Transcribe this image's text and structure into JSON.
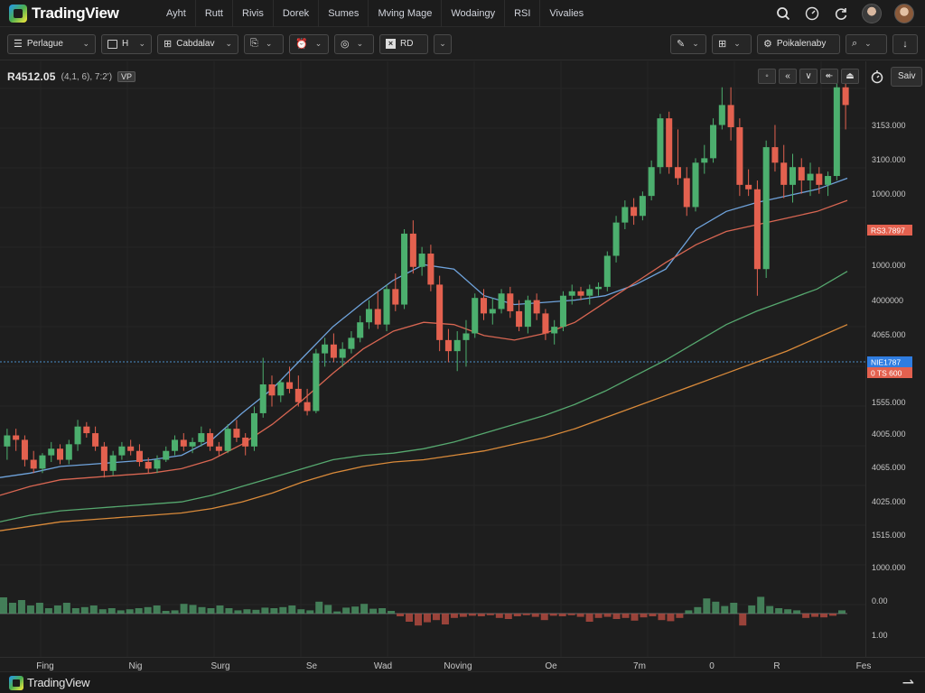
{
  "app": {
    "brand": "TradingView",
    "menu": [
      "Ayht",
      "Rutt",
      "Rivis",
      "Dorek",
      "Sumes",
      "Mving Mage",
      "Wodaingy",
      "RSI",
      "Vivalies"
    ],
    "footer_brand": "TradingView"
  },
  "header_icons": [
    "search-icon",
    "clock-icon",
    "refresh-icon",
    "avatar-user-1",
    "avatar-user-2"
  ],
  "toolbar": {
    "symbol_select": "Perlague",
    "interval_select": "H",
    "chart_type_select": "Cabdalav",
    "indicator_select": "RD",
    "right_select": "Poikalenaby"
  },
  "legend": {
    "symbol": "R4512.05",
    "params": "(4,1, 6), 7:2')",
    "badge": "VP"
  },
  "scale_controls": {
    "button_label": "Saiv"
  },
  "colors": {
    "background": "#1e1e1e",
    "up": "#4caf6e",
    "down": "#e3614f",
    "ma_blue": "#6fa3dc",
    "ma_red": "#d86652",
    "ma_green": "#56a86f",
    "ma_orange": "#d98a3a",
    "price_marker_red": "#e3614f",
    "price_marker_blue": "#2f7de1",
    "crosshair": "#4a8fc8"
  },
  "chart_data": {
    "type": "candlestick",
    "title": "",
    "price_axis_labels": [
      "3153.000",
      "3100.000",
      "1000.000",
      "1000.000",
      "4000000",
      "4065.000",
      "1515.000",
      "1555.000",
      "4005.000",
      "4065.000",
      "4025.000",
      "1515.000",
      "1000.000",
      "0.00",
      "1.00"
    ],
    "time_axis_labels": [
      "Fing",
      "Nig",
      "Surg",
      "Se",
      "Wad",
      "Noving",
      "Oe",
      "7m",
      "0",
      "R",
      "Fes"
    ],
    "price_markers": [
      {
        "label": "RS3.7897",
        "color": "#e3614f"
      },
      {
        "label": "NIE1787",
        "color": "#2f7de1"
      },
      {
        "label": "0 TS 600",
        "color": "#e3614f"
      }
    ],
    "ylim": [
      0,
      210
    ],
    "candles": [
      {
        "o": 42,
        "h": 50,
        "l": 36,
        "c": 47
      },
      {
        "o": 47,
        "h": 50,
        "l": 40,
        "c": 45
      },
      {
        "o": 45,
        "h": 47,
        "l": 33,
        "c": 36
      },
      {
        "o": 36,
        "h": 40,
        "l": 30,
        "c": 32
      },
      {
        "o": 32,
        "h": 39,
        "l": 30,
        "c": 38
      },
      {
        "o": 38,
        "h": 44,
        "l": 35,
        "c": 41
      },
      {
        "o": 41,
        "h": 43,
        "l": 34,
        "c": 36
      },
      {
        "o": 36,
        "h": 45,
        "l": 34,
        "c": 43
      },
      {
        "o": 43,
        "h": 54,
        "l": 40,
        "c": 51
      },
      {
        "o": 51,
        "h": 53,
        "l": 46,
        "c": 48
      },
      {
        "o": 48,
        "h": 51,
        "l": 40,
        "c": 42
      },
      {
        "o": 42,
        "h": 44,
        "l": 28,
        "c": 31
      },
      {
        "o": 31,
        "h": 40,
        "l": 29,
        "c": 38
      },
      {
        "o": 38,
        "h": 44,
        "l": 36,
        "c": 42
      },
      {
        "o": 42,
        "h": 45,
        "l": 38,
        "c": 40
      },
      {
        "o": 40,
        "h": 43,
        "l": 33,
        "c": 35
      },
      {
        "o": 35,
        "h": 37,
        "l": 30,
        "c": 32
      },
      {
        "o": 32,
        "h": 38,
        "l": 30,
        "c": 36
      },
      {
        "o": 36,
        "h": 42,
        "l": 35,
        "c": 40
      },
      {
        "o": 40,
        "h": 47,
        "l": 38,
        "c": 45
      },
      {
        "o": 45,
        "h": 48,
        "l": 40,
        "c": 42
      },
      {
        "o": 42,
        "h": 46,
        "l": 39,
        "c": 44
      },
      {
        "o": 44,
        "h": 51,
        "l": 42,
        "c": 48
      },
      {
        "o": 48,
        "h": 50,
        "l": 40,
        "c": 42
      },
      {
        "o": 42,
        "h": 44,
        "l": 38,
        "c": 40
      },
      {
        "o": 40,
        "h": 52,
        "l": 39,
        "c": 50
      },
      {
        "o": 50,
        "h": 54,
        "l": 44,
        "c": 46
      },
      {
        "o": 46,
        "h": 48,
        "l": 38,
        "c": 42
      },
      {
        "o": 42,
        "h": 60,
        "l": 40,
        "c": 57
      },
      {
        "o": 57,
        "h": 82,
        "l": 55,
        "c": 70
      },
      {
        "o": 70,
        "h": 74,
        "l": 60,
        "c": 65
      },
      {
        "o": 65,
        "h": 72,
        "l": 62,
        "c": 71
      },
      {
        "o": 71,
        "h": 78,
        "l": 66,
        "c": 68
      },
      {
        "o": 68,
        "h": 74,
        "l": 60,
        "c": 62
      },
      {
        "o": 62,
        "h": 68,
        "l": 56,
        "c": 58
      },
      {
        "o": 58,
        "h": 86,
        "l": 57,
        "c": 84
      },
      {
        "o": 84,
        "h": 91,
        "l": 78,
        "c": 88
      },
      {
        "o": 88,
        "h": 93,
        "l": 80,
        "c": 82
      },
      {
        "o": 82,
        "h": 89,
        "l": 78,
        "c": 86
      },
      {
        "o": 86,
        "h": 94,
        "l": 84,
        "c": 91
      },
      {
        "o": 91,
        "h": 101,
        "l": 89,
        "c": 98
      },
      {
        "o": 98,
        "h": 108,
        "l": 95,
        "c": 104
      },
      {
        "o": 104,
        "h": 112,
        "l": 95,
        "c": 97
      },
      {
        "o": 97,
        "h": 115,
        "l": 94,
        "c": 113
      },
      {
        "o": 113,
        "h": 120,
        "l": 103,
        "c": 106
      },
      {
        "o": 106,
        "h": 140,
        "l": 104,
        "c": 138
      },
      {
        "o": 138,
        "h": 144,
        "l": 120,
        "c": 123
      },
      {
        "o": 123,
        "h": 132,
        "l": 119,
        "c": 129
      },
      {
        "o": 129,
        "h": 133,
        "l": 112,
        "c": 115
      },
      {
        "o": 115,
        "h": 119,
        "l": 85,
        "c": 90
      },
      {
        "o": 90,
        "h": 95,
        "l": 80,
        "c": 85
      },
      {
        "o": 85,
        "h": 94,
        "l": 76,
        "c": 90
      },
      {
        "o": 90,
        "h": 99,
        "l": 78,
        "c": 93
      },
      {
        "o": 93,
        "h": 111,
        "l": 91,
        "c": 109
      },
      {
        "o": 109,
        "h": 113,
        "l": 99,
        "c": 102
      },
      {
        "o": 102,
        "h": 109,
        "l": 97,
        "c": 104
      },
      {
        "o": 104,
        "h": 113,
        "l": 102,
        "c": 111
      },
      {
        "o": 111,
        "h": 114,
        "l": 100,
        "c": 103
      },
      {
        "o": 103,
        "h": 108,
        "l": 94,
        "c": 96
      },
      {
        "o": 96,
        "h": 110,
        "l": 93,
        "c": 108
      },
      {
        "o": 108,
        "h": 111,
        "l": 99,
        "c": 102
      },
      {
        "o": 102,
        "h": 104,
        "l": 90,
        "c": 93
      },
      {
        "o": 93,
        "h": 99,
        "l": 88,
        "c": 96
      },
      {
        "o": 96,
        "h": 112,
        "l": 94,
        "c": 110
      },
      {
        "o": 110,
        "h": 115,
        "l": 106,
        "c": 112
      },
      {
        "o": 112,
        "h": 114,
        "l": 108,
        "c": 110
      },
      {
        "o": 110,
        "h": 115,
        "l": 106,
        "c": 113
      },
      {
        "o": 113,
        "h": 116,
        "l": 110,
        "c": 114
      },
      {
        "o": 114,
        "h": 130,
        "l": 112,
        "c": 128
      },
      {
        "o": 128,
        "h": 146,
        "l": 125,
        "c": 143
      },
      {
        "o": 143,
        "h": 153,
        "l": 140,
        "c": 150
      },
      {
        "o": 150,
        "h": 154,
        "l": 142,
        "c": 146
      },
      {
        "o": 146,
        "h": 157,
        "l": 144,
        "c": 155
      },
      {
        "o": 155,
        "h": 171,
        "l": 153,
        "c": 168
      },
      {
        "o": 168,
        "h": 192,
        "l": 165,
        "c": 190
      },
      {
        "o": 190,
        "h": 193,
        "l": 165,
        "c": 168
      },
      {
        "o": 168,
        "h": 185,
        "l": 160,
        "c": 163
      },
      {
        "o": 163,
        "h": 168,
        "l": 146,
        "c": 150
      },
      {
        "o": 150,
        "h": 172,
        "l": 148,
        "c": 170
      },
      {
        "o": 170,
        "h": 178,
        "l": 165,
        "c": 172
      },
      {
        "o": 172,
        "h": 190,
        "l": 170,
        "c": 187
      },
      {
        "o": 187,
        "h": 204,
        "l": 185,
        "c": 196
      },
      {
        "o": 196,
        "h": 204,
        "l": 180,
        "c": 186
      },
      {
        "o": 186,
        "h": 190,
        "l": 155,
        "c": 160
      },
      {
        "o": 160,
        "h": 167,
        "l": 155,
        "c": 158
      },
      {
        "o": 158,
        "h": 162,
        "l": 110,
        "c": 122
      },
      {
        "o": 122,
        "h": 180,
        "l": 118,
        "c": 177
      },
      {
        "o": 177,
        "h": 187,
        "l": 166,
        "c": 170
      },
      {
        "o": 170,
        "h": 178,
        "l": 154,
        "c": 160
      },
      {
        "o": 160,
        "h": 174,
        "l": 152,
        "c": 168
      },
      {
        "o": 168,
        "h": 172,
        "l": 156,
        "c": 162
      },
      {
        "o": 162,
        "h": 170,
        "l": 155,
        "c": 165
      },
      {
        "o": 165,
        "h": 168,
        "l": 156,
        "c": 160
      },
      {
        "o": 160,
        "h": 166,
        "l": 155,
        "c": 164
      },
      {
        "o": 164,
        "h": 210,
        "l": 162,
        "c": 204
      },
      {
        "o": 204,
        "h": 208,
        "l": 185,
        "c": 196
      }
    ],
    "moving_averages": [
      {
        "color": "#6fa3dc",
        "values": [
          28,
          30,
          33,
          34,
          35,
          36,
          38,
          45,
          57,
          68,
          82,
          96,
          107,
          117,
          124,
          122,
          110,
          106,
          107,
          108,
          110,
          115,
          122,
          140,
          148,
          152,
          155,
          158,
          163
        ]
      },
      {
        "color": "#d86652",
        "values": [
          20,
          24,
          27,
          28,
          29,
          30,
          32,
          36,
          43,
          52,
          63,
          75,
          86,
          94,
          98,
          97,
          92,
          90,
          93,
          98,
          107,
          116,
          125,
          133,
          139,
          142,
          145,
          148,
          153
        ]
      },
      {
        "color": "#56a86f",
        "values": [
          8,
          11,
          13,
          14,
          15,
          16,
          17,
          20,
          24,
          28,
          32,
          36,
          38,
          39,
          41,
          44,
          48,
          52,
          56,
          61,
          67,
          74,
          81,
          89,
          97,
          103,
          108,
          113,
          121
        ]
      },
      {
        "color": "#d98a3a",
        "values": [
          4,
          6,
          8,
          9,
          10,
          11,
          12,
          14,
          17,
          21,
          26,
          30,
          33,
          35,
          36,
          38,
          40,
          43,
          46,
          50,
          55,
          60,
          65,
          70,
          75,
          80,
          85,
          91,
          97
        ]
      }
    ],
    "histogram": [
      3,
      2,
      2.5,
      1.5,
      2,
      1,
      1.5,
      2,
      1,
      1.2,
      1.5,
      0.8,
      1,
      0.6,
      0.8,
      1,
      1.2,
      1.5,
      0.5,
      0.6,
      1.8,
      1.6,
      1.2,
      1,
      1.5,
      1,
      0.6,
      0.8,
      0.7,
      1.1,
      1,
      1.2,
      1.5,
      0.8,
      0.6,
      2.2,
      1.6,
      0.4,
      1.1,
      1.3,
      1.8,
      0.9,
      1,
      0.5,
      -0.5,
      -1.5,
      -2.2,
      -1.6,
      -1.2,
      -2.0,
      -0.8,
      -0.6,
      -0.4,
      -0.5,
      -0.3,
      -0.8,
      -1,
      -0.5,
      -0.3,
      -0.6,
      -1.2,
      -0.4,
      -0.5,
      -0.3,
      -0.6,
      -1.5,
      -0.8,
      -0.6,
      -1.0,
      -0.8,
      -1.3,
      -0.7,
      -0.5,
      -1.2,
      -1.4,
      -0.8,
      0.6,
      1.2,
      2.8,
      2.2,
      1.4,
      2.0,
      -2.2,
      1.5,
      3.1,
      1.4,
      1.0,
      0.8,
      0.6,
      -0.8,
      -0.6,
      -0.7,
      -0.4,
      0.6
    ]
  }
}
